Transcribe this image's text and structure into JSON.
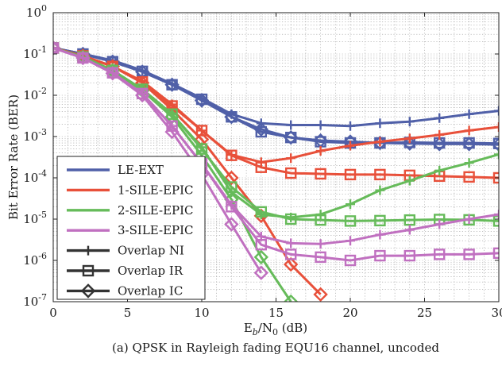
{
  "chart_data": {
    "type": "line",
    "caption": "(a) QPSK in Rayleigh fading EQU16 channel, uncoded",
    "xlabel": "E_b/N_0 (dB)",
    "xlabel_parts": {
      "main": "E",
      "sub": "b",
      "rest": "/N",
      "sub2": "0",
      "unit": " (dB)"
    },
    "ylabel": "Bit Error Rate (BER)",
    "xlim": [
      0,
      30
    ],
    "ylim": [
      1e-07,
      1
    ],
    "y_scale": "log",
    "grid": true,
    "x_ticks": [
      0,
      5,
      10,
      15,
      20,
      25,
      30
    ],
    "y_tick_exponents": [
      0,
      -1,
      -2,
      -3,
      -4,
      -5,
      -6,
      -7
    ],
    "legend_placement": "bottom-left",
    "legend": [
      {
        "label": "LE-EXT",
        "kind": "line",
        "color": "#5060a8"
      },
      {
        "label": "1-SILE-EPIC",
        "kind": "line",
        "color": "#e8503a"
      },
      {
        "label": "2-SILE-EPIC",
        "kind": "line",
        "color": "#66bb5a"
      },
      {
        "label": "3-SILE-EPIC",
        "kind": "line",
        "color": "#c070c0"
      },
      {
        "label": "Overlap NI",
        "kind": "marker",
        "marker": "plus",
        "color": "#333333"
      },
      {
        "label": "Overlap IR",
        "kind": "marker",
        "marker": "square",
        "color": "#333333"
      },
      {
        "label": "Overlap IC",
        "kind": "marker",
        "marker": "diamond",
        "color": "#333333"
      }
    ],
    "series": [
      {
        "group": "LE-EXT",
        "marker": "plus",
        "color": "#5060a8",
        "x": [
          0,
          2,
          4,
          6,
          8,
          10,
          12,
          14,
          16,
          18,
          20,
          22,
          24,
          26,
          28,
          30
        ],
        "y": [
          0.14,
          0.1,
          0.07,
          0.04,
          0.019,
          0.0085,
          0.0035,
          0.0021,
          0.0019,
          0.0019,
          0.0018,
          0.0021,
          0.0023,
          0.0028,
          0.0035,
          0.0042
        ]
      },
      {
        "group": "LE-EXT",
        "marker": "square",
        "color": "#5060a8",
        "x": [
          0,
          2,
          4,
          6,
          8,
          10,
          12,
          14,
          16,
          18,
          20,
          22,
          24,
          26,
          28,
          30
        ],
        "y": [
          0.14,
          0.1,
          0.065,
          0.038,
          0.018,
          0.008,
          0.003,
          0.0013,
          0.00095,
          0.00075,
          0.0007,
          0.0007,
          0.00072,
          0.0007,
          0.0007,
          0.00068
        ]
      },
      {
        "group": "LE-EXT",
        "marker": "diamond",
        "color": "#5060a8",
        "x": [
          0,
          2,
          4,
          6,
          8,
          10,
          12,
          14,
          16,
          18,
          20,
          22,
          24,
          26,
          28,
          30
        ],
        "y": [
          0.14,
          0.1,
          0.065,
          0.037,
          0.018,
          0.0075,
          0.003,
          0.0015,
          0.00095,
          0.0008,
          0.00075,
          0.0007,
          0.00068,
          0.00066,
          0.00066,
          0.00064
        ]
      },
      {
        "group": "1-SILE-EPIC",
        "marker": "plus",
        "color": "#e8503a",
        "x": [
          0,
          2,
          4,
          6,
          8,
          10,
          12,
          14,
          16,
          18,
          20,
          22,
          24,
          26,
          28,
          30
        ],
        "y": [
          0.14,
          0.09,
          0.05,
          0.022,
          0.006,
          0.0014,
          0.00036,
          0.00024,
          0.0003,
          0.00045,
          0.0006,
          0.00075,
          0.0009,
          0.0011,
          0.0014,
          0.0017
        ]
      },
      {
        "group": "1-SILE-EPIC",
        "marker": "square",
        "color": "#e8503a",
        "x": [
          0,
          2,
          4,
          6,
          8,
          10,
          12,
          14,
          16,
          18,
          20,
          22,
          24,
          26,
          28,
          30
        ],
        "y": [
          0.14,
          0.09,
          0.05,
          0.021,
          0.0055,
          0.0014,
          0.00035,
          0.00018,
          0.00013,
          0.000125,
          0.00012,
          0.00012,
          0.000115,
          0.00011,
          0.000105,
          0.0001
        ]
      },
      {
        "group": "1-SILE-EPIC",
        "marker": "diamond",
        "color": "#e8503a",
        "x": [
          0,
          2,
          4,
          6,
          8,
          10,
          12,
          14,
          16,
          18
        ],
        "y": [
          0.14,
          0.09,
          0.05,
          0.02,
          0.0045,
          0.00085,
          0.0001,
          1.2e-05,
          8e-07,
          1.5e-07
        ]
      },
      {
        "group": "2-SILE-EPIC",
        "marker": "plus",
        "color": "#66bb5a",
        "x": [
          0,
          2,
          4,
          6,
          8,
          10,
          12,
          14,
          16,
          18,
          20,
          22,
          24,
          26,
          28,
          30
        ],
        "y": [
          0.14,
          0.085,
          0.04,
          0.014,
          0.0035,
          0.00055,
          4.5e-05,
          1.3e-05,
          1.1e-05,
          1.3e-05,
          2.3e-05,
          5e-05,
          8.5e-05,
          0.00015,
          0.00023,
          0.00037
        ]
      },
      {
        "group": "2-SILE-EPIC",
        "marker": "square",
        "color": "#66bb5a",
        "x": [
          0,
          2,
          4,
          6,
          8,
          10,
          12,
          14,
          16,
          18,
          20,
          22,
          24,
          26,
          28,
          30
        ],
        "y": [
          0.14,
          0.085,
          0.04,
          0.014,
          0.0035,
          0.0005,
          6e-05,
          1.5e-05,
          1e-05,
          9.5e-06,
          9e-06,
          9.2e-06,
          9.5e-06,
          9.8e-06,
          9.6e-06,
          9e-06
        ]
      },
      {
        "group": "2-SILE-EPIC",
        "marker": "diamond",
        "color": "#66bb5a",
        "x": [
          0,
          2,
          4,
          6,
          8,
          10,
          12,
          14,
          16
        ],
        "y": [
          0.14,
          0.085,
          0.04,
          0.013,
          0.003,
          0.00035,
          3e-05,
          1.2e-06,
          1e-07
        ]
      },
      {
        "group": "3-SILE-EPIC",
        "marker": "plus",
        "color": "#c070c0",
        "x": [
          0,
          2,
          4,
          6,
          8,
          10,
          12,
          14,
          16,
          18,
          20,
          22,
          24,
          26,
          28,
          30
        ],
        "y": [
          0.14,
          0.08,
          0.035,
          0.011,
          0.0018,
          0.00022,
          2.2e-05,
          3.8e-06,
          2.6e-06,
          2.5e-06,
          3e-06,
          4.2e-06,
          5.5e-06,
          7.5e-06,
          1e-05,
          1.3e-05
        ]
      },
      {
        "group": "3-SILE-EPIC",
        "marker": "square",
        "color": "#c070c0",
        "x": [
          0,
          2,
          4,
          6,
          8,
          10,
          12,
          14,
          16,
          18,
          20,
          22,
          24,
          26,
          28,
          30
        ],
        "y": [
          0.14,
          0.08,
          0.035,
          0.011,
          0.0018,
          0.00022,
          2e-05,
          2.4e-06,
          1.4e-06,
          1.2e-06,
          1e-06,
          1.3e-06,
          1.3e-06,
          1.4e-06,
          1.4e-06,
          1.5e-06
        ]
      },
      {
        "group": "3-SILE-EPIC",
        "marker": "diamond",
        "color": "#c070c0",
        "x": [
          0,
          2,
          4,
          6,
          8,
          10,
          12,
          14
        ],
        "y": [
          0.14,
          0.08,
          0.034,
          0.01,
          0.0013,
          0.00012,
          7.5e-06,
          5e-07
        ]
      }
    ]
  }
}
